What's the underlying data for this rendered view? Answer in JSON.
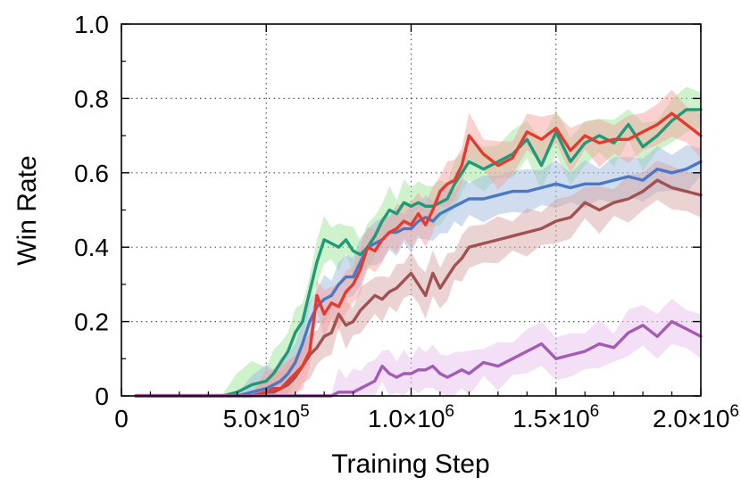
{
  "chart_data": {
    "type": "line",
    "xlabel": "Training Step",
    "ylabel": "Win Rate",
    "xlim": [
      0,
      2000000
    ],
    "ylim": [
      0,
      1.0
    ],
    "grid": true,
    "legend": "none",
    "x_ticks": [
      {
        "value": 0,
        "mantissa": "0",
        "exp": ""
      },
      {
        "value": 500000,
        "mantissa": "5.0×10",
        "exp": "5"
      },
      {
        "value": 1000000,
        "mantissa": "1.0×10",
        "exp": "6"
      },
      {
        "value": 1500000,
        "mantissa": "1.5×10",
        "exp": "6"
      },
      {
        "value": 2000000,
        "mantissa": "2.0×10",
        "exp": "6"
      }
    ],
    "y_ticks": [
      {
        "value": 0,
        "label": "0"
      },
      {
        "value": 0.2,
        "label": "0.2"
      },
      {
        "value": 0.4,
        "label": "0.4"
      },
      {
        "value": 0.6,
        "label": "0.6"
      },
      {
        "value": 0.8,
        "label": "0.8"
      },
      {
        "value": 1.0,
        "label": "1.0"
      }
    ],
    "x": [
      50000,
      100000,
      150000,
      200000,
      250000,
      300000,
      350000,
      400000,
      450000,
      500000,
      525000,
      550000,
      575000,
      600000,
      625000,
      650000,
      675000,
      700000,
      725000,
      750000,
      775000,
      800000,
      825000,
      850000,
      875000,
      900000,
      925000,
      950000,
      975000,
      1000000,
      1025000,
      1050000,
      1075000,
      1100000,
      1125000,
      1150000,
      1175000,
      1200000,
      1250000,
      1300000,
      1350000,
      1400000,
      1450000,
      1500000,
      1550000,
      1600000,
      1650000,
      1700000,
      1750000,
      1800000,
      1850000,
      1900000,
      1950000,
      2000000
    ],
    "series": [
      {
        "color": "#1f9a78",
        "band_color": "#9ee89a",
        "values": [
          0,
          0,
          0,
          0,
          0,
          0,
          0,
          0.01,
          0.03,
          0.04,
          0.06,
          0.09,
          0.12,
          0.17,
          0.2,
          0.28,
          0.36,
          0.42,
          0.41,
          0.4,
          0.42,
          0.39,
          0.38,
          0.4,
          0.43,
          0.47,
          0.5,
          0.49,
          0.52,
          0.51,
          0.52,
          0.51,
          0.51,
          0.52,
          0.53,
          0.57,
          0.6,
          0.63,
          0.61,
          0.63,
          0.65,
          0.69,
          0.62,
          0.71,
          0.63,
          0.68,
          0.7,
          0.68,
          0.73,
          0.67,
          0.7,
          0.74,
          0.77,
          0.77
        ]
      },
      {
        "color": "#4a78c4",
        "band_color": "#9fbce0",
        "values": [
          0,
          0,
          0,
          0,
          0,
          0,
          0,
          0,
          0.01,
          0.02,
          0.03,
          0.04,
          0.06,
          0.09,
          0.14,
          0.2,
          0.24,
          0.26,
          0.27,
          0.3,
          0.32,
          0.32,
          0.36,
          0.4,
          0.41,
          0.42,
          0.44,
          0.44,
          0.45,
          0.45,
          0.47,
          0.48,
          0.47,
          0.49,
          0.5,
          0.51,
          0.52,
          0.53,
          0.53,
          0.54,
          0.55,
          0.55,
          0.56,
          0.57,
          0.56,
          0.57,
          0.57,
          0.58,
          0.59,
          0.58,
          0.61,
          0.6,
          0.61,
          0.63
        ]
      },
      {
        "color": "#a05252",
        "band_color": "#d9a8a8",
        "values": [
          0,
          0,
          0,
          0,
          0,
          0,
          0,
          0,
          0,
          0.01,
          0.01,
          0.02,
          0.03,
          0.05,
          0.08,
          0.11,
          0.13,
          0.16,
          0.17,
          0.22,
          0.19,
          0.2,
          0.23,
          0.25,
          0.27,
          0.26,
          0.28,
          0.29,
          0.31,
          0.33,
          0.3,
          0.27,
          0.33,
          0.29,
          0.32,
          0.35,
          0.37,
          0.4,
          0.41,
          0.42,
          0.43,
          0.44,
          0.45,
          0.47,
          0.48,
          0.52,
          0.5,
          0.52,
          0.53,
          0.55,
          0.58,
          0.56,
          0.55,
          0.54
        ]
      },
      {
        "color": "#e53a2f",
        "band_color": "#f5a4a0",
        "values": [
          0,
          0,
          0,
          0,
          0,
          0,
          0,
          0,
          0,
          0.01,
          0.02,
          0.02,
          0.04,
          0.06,
          0.08,
          0.12,
          0.27,
          0.22,
          0.25,
          0.24,
          0.28,
          0.3,
          0.34,
          0.4,
          0.39,
          0.42,
          0.44,
          0.45,
          0.47,
          0.46,
          0.49,
          0.46,
          0.5,
          0.55,
          0.57,
          0.58,
          0.62,
          0.7,
          0.65,
          0.62,
          0.64,
          0.71,
          0.69,
          0.72,
          0.66,
          0.7,
          0.68,
          0.69,
          0.69,
          0.71,
          0.73,
          0.76,
          0.73,
          0.7
        ]
      },
      {
        "color": "#a35bb5",
        "band_color": "#e7c2ee",
        "values": [
          0,
          0,
          0,
          0,
          0,
          0,
          0,
          0,
          0,
          0,
          0,
          0,
          0,
          0,
          0,
          0,
          0,
          0,
          0,
          0.01,
          0.01,
          0.01,
          0.02,
          0.03,
          0.04,
          0.08,
          0.06,
          0.05,
          0.06,
          0.06,
          0.07,
          0.07,
          0.08,
          0.06,
          0.05,
          0.06,
          0.07,
          0.06,
          0.09,
          0.08,
          0.1,
          0.12,
          0.14,
          0.1,
          0.11,
          0.12,
          0.14,
          0.13,
          0.17,
          0.19,
          0.16,
          0.2,
          0.18,
          0.16
        ]
      }
    ]
  }
}
